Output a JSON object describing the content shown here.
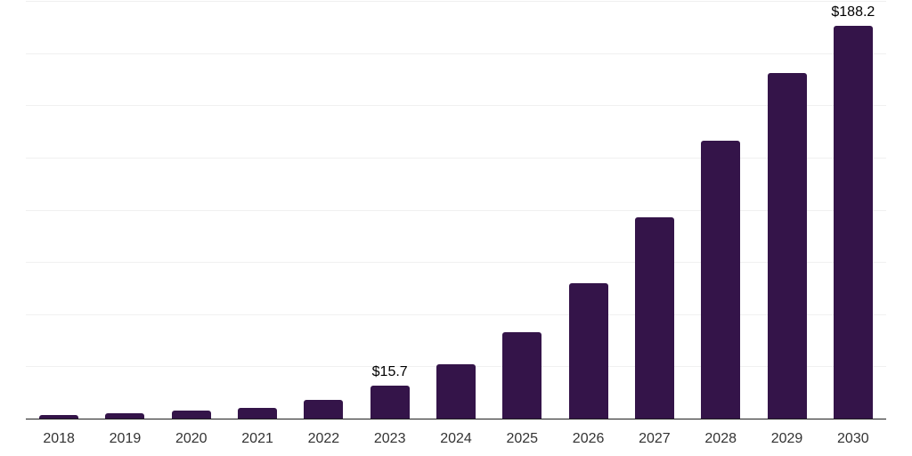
{
  "chart_data": {
    "type": "bar",
    "title": "",
    "xlabel": "",
    "ylabel": "",
    "categories": [
      "2018",
      "2019",
      "2020",
      "2021",
      "2022",
      "2023",
      "2024",
      "2025",
      "2026",
      "2027",
      "2028",
      "2029",
      "2030"
    ],
    "values": [
      1.7,
      2.7,
      3.7,
      5.2,
      9.1,
      15.7,
      26.1,
      41.4,
      64.7,
      96.2,
      133.1,
      165.6,
      188.2
    ],
    "data_labels": [
      {
        "category": "2023",
        "value": 15.7,
        "text": "$15.7"
      },
      {
        "category": "2030",
        "value": 188.2,
        "text": "$188.2"
      }
    ],
    "ylim": [
      0,
      200
    ],
    "gridline_step": 25,
    "grid": "horizontal-only",
    "y_tick_labels_visible": false,
    "legend": "none",
    "colors": {
      "bar": "#341449",
      "axis_line": "#1f1f1f",
      "gridline": "#f0f0f0",
      "tick_label": "#333333",
      "data_label": "#000000",
      "background": "#ffffff"
    }
  }
}
